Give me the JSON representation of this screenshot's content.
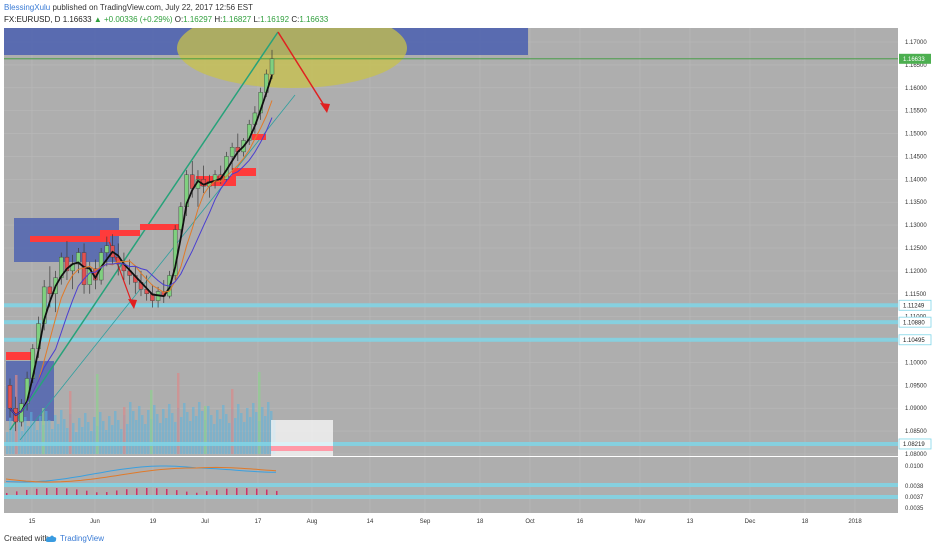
{
  "header": {
    "author": "BlessingXulu",
    "published": "published on TradingView.com, July 22, 2017 12:56 EST",
    "symbol": "FX:EURUSD, D",
    "last": "1.16633",
    "change": "▲ +0.00336 (+0.29%)",
    "open_label": "O:",
    "open": "1.16297",
    "high_label": "H:",
    "high": "1.16827",
    "low_label": "L:",
    "low": "1.16192",
    "close_label": "C:",
    "close": "1.16633"
  },
  "footer": {
    "created": "Created with",
    "brand": "TradingView"
  },
  "colors": {
    "panel_bg": "#aeaeae",
    "bull": "#7fd07f",
    "bear": "#e15151",
    "level_line": "#7fd6e8",
    "price_badge": "#4caf50",
    "zone_blue": "#4a5fb0",
    "zone_yellow": "#c8c24a"
  },
  "chart_data": {
    "type": "candlestick",
    "symbol": "FX:EURUSD",
    "interval": "D",
    "ylim": [
      1.08,
      1.1725
    ],
    "y_ticks": [
      "1.17000",
      "1.16500",
      "1.16000",
      "1.15500",
      "1.15000",
      "1.14500",
      "1.14000",
      "1.13500",
      "1.13000",
      "1.12500",
      "1.12000",
      "1.11500",
      "1.11000",
      "1.10500",
      "1.10000",
      "1.09500",
      "1.09000",
      "1.08500",
      "1.08000"
    ],
    "x_ticks": [
      "15",
      "Jun",
      "19",
      "Jul",
      "17",
      "Aug",
      "14",
      "Sep",
      "18",
      "Oct",
      "16",
      "Nov",
      "13",
      "Dec",
      "18",
      "2018"
    ],
    "price_labels": [
      "1.16633",
      "1.11249",
      "1.10880",
      "1.10495",
      "1.08219"
    ],
    "horizontal_levels": [
      1.11249,
      1.1088,
      1.10495,
      1.08219
    ],
    "current_price": 1.16633,
    "candles": [
      [
        1.095,
        1.0965,
        1.088,
        1.09
      ],
      [
        1.09,
        1.0925,
        1.085,
        1.087
      ],
      [
        1.087,
        1.092,
        1.086,
        1.091
      ],
      [
        1.091,
        1.098,
        1.0895,
        1.0965
      ],
      [
        1.0965,
        1.104,
        1.0955,
        1.103
      ],
      [
        1.103,
        1.11,
        1.101,
        1.1085
      ],
      [
        1.1085,
        1.118,
        1.107,
        1.1165
      ],
      [
        1.1165,
        1.121,
        1.112,
        1.115
      ],
      [
        1.115,
        1.12,
        1.111,
        1.1185
      ],
      [
        1.1185,
        1.124,
        1.117,
        1.123
      ],
      [
        1.123,
        1.1265,
        1.118,
        1.12
      ],
      [
        1.12,
        1.1235,
        1.116,
        1.1215
      ],
      [
        1.1215,
        1.125,
        1.1195,
        1.124
      ],
      [
        1.124,
        1.126,
        1.115,
        1.117
      ],
      [
        1.117,
        1.122,
        1.115,
        1.1205
      ],
      [
        1.1205,
        1.1225,
        1.116,
        1.118
      ],
      [
        1.118,
        1.125,
        1.117,
        1.124
      ],
      [
        1.124,
        1.1275,
        1.121,
        1.1255
      ],
      [
        1.1255,
        1.128,
        1.1215,
        1.123
      ],
      [
        1.123,
        1.126,
        1.119,
        1.1215
      ],
      [
        1.1215,
        1.124,
        1.118,
        1.12
      ],
      [
        1.12,
        1.1225,
        1.117,
        1.119
      ],
      [
        1.119,
        1.121,
        1.115,
        1.1175
      ],
      [
        1.1175,
        1.12,
        1.1145,
        1.116
      ],
      [
        1.116,
        1.119,
        1.1135,
        1.115
      ],
      [
        1.115,
        1.117,
        1.112,
        1.1135
      ],
      [
        1.1135,
        1.1165,
        1.112,
        1.1155
      ],
      [
        1.1155,
        1.118,
        1.113,
        1.1145
      ],
      [
        1.1145,
        1.12,
        1.114,
        1.119
      ],
      [
        1.119,
        1.13,
        1.118,
        1.129
      ],
      [
        1.129,
        1.135,
        1.127,
        1.134
      ],
      [
        1.134,
        1.142,
        1.132,
        1.141
      ],
      [
        1.141,
        1.144,
        1.136,
        1.138
      ],
      [
        1.138,
        1.142,
        1.134,
        1.14
      ],
      [
        1.14,
        1.143,
        1.137,
        1.1385
      ],
      [
        1.1385,
        1.141,
        1.136,
        1.1395
      ],
      [
        1.1395,
        1.142,
        1.138,
        1.141
      ],
      [
        1.141,
        1.143,
        1.139,
        1.14
      ],
      [
        1.14,
        1.146,
        1.1395,
        1.145
      ],
      [
        1.145,
        1.148,
        1.142,
        1.147
      ],
      [
        1.147,
        1.15,
        1.144,
        1.146
      ],
      [
        1.146,
        1.149,
        1.145,
        1.1485
      ],
      [
        1.1485,
        1.153,
        1.1475,
        1.152
      ],
      [
        1.152,
        1.156,
        1.15,
        1.1545
      ],
      [
        1.1545,
        1.16,
        1.153,
        1.159
      ],
      [
        1.159,
        1.164,
        1.158,
        1.163
      ],
      [
        1.16297,
        1.16827,
        1.16192,
        1.16633
      ]
    ]
  }
}
